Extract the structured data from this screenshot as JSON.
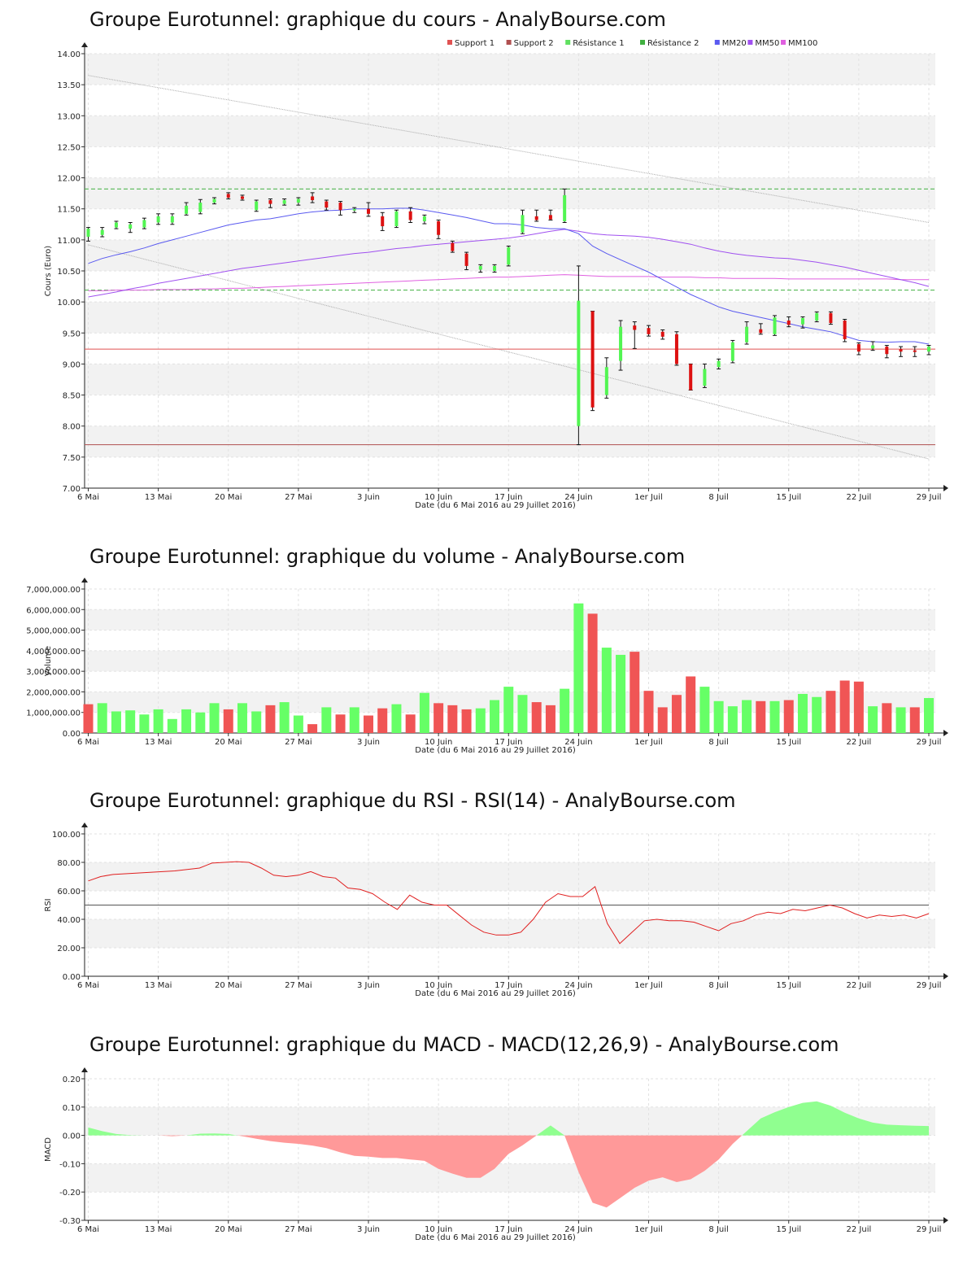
{
  "charts": [
    {
      "id": "price",
      "title": "Groupe Eurotunnel: graphique du cours - AnalyBourse.com",
      "ylabel": "Cours (Euro)",
      "xlabel": "Date (du 6 Mai 2016 au 29 Juillet 2016)"
    },
    {
      "id": "volume",
      "title": "Groupe Eurotunnel: graphique du volume - AnalyBourse.com",
      "ylabel": "Volume",
      "xlabel": "Date (du 6 Mai 2016 au 29 Juillet 2016)"
    },
    {
      "id": "rsi",
      "title": "Groupe Eurotunnel: graphique du RSI - RSI(14) - AnalyBourse.com",
      "ylabel": "RSI",
      "xlabel": "Date (du 6 Mai 2016 au 29 Juillet 2016)"
    },
    {
      "id": "macd",
      "title": "Groupe Eurotunnel: graphique du MACD - MACD(12,26,9) - AnalyBourse.com",
      "ylabel": "MACD",
      "xlabel": "Date (du 6 Mai 2016 au 29 Juillet 2016)"
    }
  ],
  "x_tick_labels": [
    "6 Mai",
    "13 Mai",
    "20 Mai",
    "27 Mai",
    "3 Juin",
    "10 Juin",
    "17 Juin",
    "24 Juin",
    "1er Juil",
    "8 Juil",
    "15 Juil",
    "22 Juil",
    "29 Juil"
  ],
  "legend": [
    {
      "label": "Support 1",
      "color": "#e05252"
    },
    {
      "label": "Support 2",
      "color": "#b05050"
    },
    {
      "label": "Résistance 1",
      "color": "#60e060"
    },
    {
      "label": "Résistance 2",
      "color": "#40b040"
    },
    {
      "label": "MM20",
      "color": "#5a5af0"
    },
    {
      "label": "MM50",
      "color": "#a050f0"
    },
    {
      "label": "MM100",
      "color": "#e060e0"
    }
  ],
  "colors": {
    "up": "#52f552",
    "down": "#dd1111",
    "vol_up": "#66ff66",
    "vol_down": "#f05555",
    "rsi": "#e02020",
    "macd_pos": "#90ff90",
    "macd_neg": "#ff9999"
  },
  "chart_data": [
    {
      "type": "candlestick",
      "title": "Groupe Eurotunnel: graphique du cours - AnalyBourse.com",
      "ylabel": "Cours (Euro)",
      "ylim": [
        7.0,
        14.0
      ],
      "yticks": [
        "7.00",
        "7.50",
        "8.00",
        "8.50",
        "9.00",
        "9.50",
        "10.00",
        "10.50",
        "11.00",
        "11.50",
        "12.00",
        "12.50",
        "13.00",
        "13.50",
        "14.00"
      ],
      "candles": [
        {
          "o": 11.05,
          "h": 11.2,
          "l": 10.98,
          "c": 11.18
        },
        {
          "o": 11.08,
          "h": 11.2,
          "l": 11.05,
          "c": 11.16
        },
        {
          "o": 11.2,
          "h": 11.3,
          "l": 11.18,
          "c": 11.28
        },
        {
          "o": 11.18,
          "h": 11.28,
          "l": 11.12,
          "c": 11.25
        },
        {
          "o": 11.2,
          "h": 11.35,
          "l": 11.18,
          "c": 11.32
        },
        {
          "o": 11.28,
          "h": 11.42,
          "l": 11.25,
          "c": 11.38
        },
        {
          "o": 11.28,
          "h": 11.42,
          "l": 11.25,
          "c": 11.38
        },
        {
          "o": 11.42,
          "h": 11.6,
          "l": 11.4,
          "c": 11.55
        },
        {
          "o": 11.45,
          "h": 11.65,
          "l": 11.42,
          "c": 11.6
        },
        {
          "o": 11.6,
          "h": 11.68,
          "l": 11.58,
          "c": 11.66
        },
        {
          "o": 11.74,
          "h": 11.76,
          "l": 11.66,
          "c": 11.68
        },
        {
          "o": 11.7,
          "h": 11.72,
          "l": 11.64,
          "c": 11.66
        },
        {
          "o": 11.48,
          "h": 11.64,
          "l": 11.46,
          "c": 11.62
        },
        {
          "o": 11.64,
          "h": 11.66,
          "l": 11.52,
          "c": 11.58
        },
        {
          "o": 11.58,
          "h": 11.66,
          "l": 11.56,
          "c": 11.64
        },
        {
          "o": 11.6,
          "h": 11.68,
          "l": 11.56,
          "c": 11.66
        },
        {
          "o": 11.7,
          "h": 11.76,
          "l": 11.6,
          "c": 11.64
        },
        {
          "o": 11.62,
          "h": 11.64,
          "l": 11.48,
          "c": 11.52
        },
        {
          "o": 11.6,
          "h": 11.62,
          "l": 11.4,
          "c": 11.48
        },
        {
          "o": 11.48,
          "h": 11.52,
          "l": 11.44,
          "c": 11.5
        },
        {
          "o": 11.5,
          "h": 11.6,
          "l": 11.38,
          "c": 11.42
        },
        {
          "o": 11.38,
          "h": 11.44,
          "l": 11.15,
          "c": 11.22
        },
        {
          "o": 11.22,
          "h": 11.48,
          "l": 11.2,
          "c": 11.46
        },
        {
          "o": 11.46,
          "h": 11.52,
          "l": 11.28,
          "c": 11.32
        },
        {
          "o": 11.3,
          "h": 11.4,
          "l": 11.26,
          "c": 11.38
        },
        {
          "o": 11.3,
          "h": 11.32,
          "l": 11.02,
          "c": 11.08
        },
        {
          "o": 10.95,
          "h": 10.98,
          "l": 10.8,
          "c": 10.82
        },
        {
          "o": 10.78,
          "h": 10.8,
          "l": 10.52,
          "c": 10.58
        },
        {
          "o": 10.52,
          "h": 10.6,
          "l": 10.48,
          "c": 10.58
        },
        {
          "o": 10.5,
          "h": 10.6,
          "l": 10.48,
          "c": 10.58
        },
        {
          "o": 10.6,
          "h": 10.9,
          "l": 10.58,
          "c": 10.88
        },
        {
          "o": 11.12,
          "h": 11.48,
          "l": 11.1,
          "c": 11.4
        },
        {
          "o": 11.38,
          "h": 11.48,
          "l": 11.3,
          "c": 11.32
        },
        {
          "o": 11.4,
          "h": 11.48,
          "l": 11.32,
          "c": 11.33
        },
        {
          "o": 11.3,
          "h": 11.82,
          "l": 11.28,
          "c": 11.72
        },
        {
          "o": 8.0,
          "h": 10.58,
          "l": 7.7,
          "c": 10.02
        },
        {
          "o": 9.85,
          "h": 9.85,
          "l": 8.25,
          "c": 8.3
        },
        {
          "o": 8.5,
          "h": 9.1,
          "l": 8.45,
          "c": 8.95
        },
        {
          "o": 9.05,
          "h": 9.7,
          "l": 8.9,
          "c": 9.6
        },
        {
          "o": 9.62,
          "h": 9.68,
          "l": 9.25,
          "c": 9.55
        },
        {
          "o": 9.58,
          "h": 9.62,
          "l": 9.45,
          "c": 9.48
        },
        {
          "o": 9.52,
          "h": 9.55,
          "l": 9.4,
          "c": 9.44
        },
        {
          "o": 9.48,
          "h": 9.52,
          "l": 8.98,
          "c": 9.0
        },
        {
          "o": 9.0,
          "h": 9.0,
          "l": 8.58,
          "c": 8.58
        },
        {
          "o": 8.65,
          "h": 9.0,
          "l": 8.62,
          "c": 8.92
        },
        {
          "o": 8.95,
          "h": 9.08,
          "l": 8.92,
          "c": 9.05
        },
        {
          "o": 9.05,
          "h": 9.38,
          "l": 9.02,
          "c": 9.35
        },
        {
          "o": 9.35,
          "h": 9.68,
          "l": 9.32,
          "c": 9.6
        },
        {
          "o": 9.56,
          "h": 9.65,
          "l": 9.48,
          "c": 9.5
        },
        {
          "o": 9.48,
          "h": 9.78,
          "l": 9.46,
          "c": 9.75
        },
        {
          "o": 9.7,
          "h": 9.76,
          "l": 9.6,
          "c": 9.63
        },
        {
          "o": 9.64,
          "h": 9.76,
          "l": 9.58,
          "c": 9.74
        },
        {
          "o": 9.7,
          "h": 9.84,
          "l": 9.68,
          "c": 9.82
        },
        {
          "o": 9.82,
          "h": 9.84,
          "l": 9.64,
          "c": 9.66
        },
        {
          "o": 9.7,
          "h": 9.72,
          "l": 9.36,
          "c": 9.4
        },
        {
          "o": 9.32,
          "h": 9.34,
          "l": 9.15,
          "c": 9.2
        },
        {
          "o": 9.25,
          "h": 9.36,
          "l": 9.22,
          "c": 9.3
        },
        {
          "o": 9.28,
          "h": 9.3,
          "l": 9.1,
          "c": 9.16
        },
        {
          "o": 9.24,
          "h": 9.28,
          "l": 9.12,
          "c": 9.2
        },
        {
          "o": 9.22,
          "h": 9.28,
          "l": 9.12,
          "c": 9.2
        },
        {
          "o": 9.2,
          "h": 9.3,
          "l": 9.15,
          "c": 9.28
        }
      ],
      "support_1": 9.24,
      "support_2": 7.7,
      "resistance_1": 11.82,
      "resistance_2": 10.19,
      "mm20": [
        10.62,
        10.7,
        10.76,
        10.81,
        10.87,
        10.94,
        11.0,
        11.06,
        11.12,
        11.18,
        11.24,
        11.28,
        11.32,
        11.34,
        11.38,
        11.42,
        11.45,
        11.47,
        11.48,
        11.5,
        11.5,
        11.5,
        11.51,
        11.51,
        11.48,
        11.44,
        11.4,
        11.36,
        11.31,
        11.26,
        11.26,
        11.24,
        11.2,
        11.18,
        11.18,
        11.1,
        10.9,
        10.78,
        10.68,
        10.58,
        10.48,
        10.36,
        10.24,
        10.12,
        10.02,
        9.92,
        9.85,
        9.8,
        9.75,
        9.7,
        9.65,
        9.6,
        9.56,
        9.52,
        9.45,
        9.38,
        9.36,
        9.35,
        9.36,
        9.36,
        9.32
      ],
      "mm50": [
        10.08,
        10.12,
        10.16,
        10.21,
        10.25,
        10.3,
        10.34,
        10.38,
        10.42,
        10.46,
        10.5,
        10.54,
        10.57,
        10.6,
        10.63,
        10.66,
        10.69,
        10.72,
        10.75,
        10.78,
        10.8,
        10.83,
        10.86,
        10.88,
        10.91,
        10.93,
        10.95,
        10.97,
        10.99,
        11.01,
        11.03,
        11.06,
        11.1,
        11.14,
        11.17,
        11.14,
        11.1,
        11.08,
        11.07,
        11.06,
        11.04,
        11.01,
        10.97,
        10.93,
        10.87,
        10.82,
        10.78,
        10.75,
        10.73,
        10.71,
        10.7,
        10.67,
        10.64,
        10.6,
        10.56,
        10.51,
        10.46,
        10.41,
        10.36,
        10.31,
        10.25
      ],
      "mm100": [
        10.18,
        10.18,
        10.19,
        10.19,
        10.19,
        10.2,
        10.2,
        10.2,
        10.21,
        10.21,
        10.22,
        10.22,
        10.23,
        10.24,
        10.25,
        10.26,
        10.27,
        10.28,
        10.29,
        10.3,
        10.31,
        10.32,
        10.33,
        10.34,
        10.35,
        10.36,
        10.37,
        10.38,
        10.39,
        10.4,
        10.4,
        10.41,
        10.42,
        10.43,
        10.44,
        10.43,
        10.42,
        10.41,
        10.41,
        10.41,
        10.41,
        10.4,
        10.4,
        10.4,
        10.39,
        10.39,
        10.38,
        10.38,
        10.38,
        10.38,
        10.37,
        10.37,
        10.37,
        10.37,
        10.37,
        10.37,
        10.37,
        10.37,
        10.36,
        10.36,
        10.36
      ],
      "channel_upper": [
        13.65,
        11.28
      ],
      "channel_lower": [
        10.92,
        7.47
      ]
    },
    {
      "type": "bar",
      "title": "Groupe Eurotunnel: graphique du volume - AnalyBourse.com",
      "ylabel": "Volume",
      "ylim": [
        0,
        7000000
      ],
      "yticks": [
        "0.00",
        "1,000,000.00",
        "2,000,000.00",
        "3,000,000.00",
        "4,000,000.00",
        "5,000,000.00",
        "6,000,000.00",
        "7,000,000.00"
      ],
      "values": [
        1400000,
        1450000,
        1050000,
        1100000,
        900000,
        1150000,
        680000,
        1150000,
        1000000,
        1450000,
        1150000,
        1450000,
        1050000,
        1350000,
        1500000,
        850000,
        430000,
        1250000,
        900000,
        1250000,
        850000,
        1200000,
        1400000,
        900000,
        1950000,
        1450000,
        1350000,
        1150000,
        1200000,
        1600000,
        2250000,
        1850000,
        1500000,
        1350000,
        2150000,
        6300000,
        5800000,
        4150000,
        3800000,
        3950000,
        2050000,
        1250000,
        1850000,
        2750000,
        2250000,
        1550000,
        1300000,
        1600000,
        1550000,
        1550000,
        1600000,
        1900000,
        1750000,
        2050000,
        2550000,
        2500000,
        1300000,
        1450000,
        1250000,
        1250000,
        1700000
      ],
      "direction": [
        "d",
        "u",
        "u",
        "u",
        "u",
        "u",
        "u",
        "u",
        "u",
        "u",
        "d",
        "u",
        "u",
        "d",
        "u",
        "u",
        "d",
        "u",
        "d",
        "u",
        "d",
        "d",
        "u",
        "d",
        "u",
        "d",
        "d",
        "d",
        "u",
        "u",
        "u",
        "u",
        "d",
        "d",
        "u",
        "u",
        "d",
        "u",
        "u",
        "d",
        "d",
        "d",
        "d",
        "d",
        "u",
        "u",
        "u",
        "u",
        "d",
        "u",
        "d",
        "u",
        "u",
        "d",
        "d",
        "d",
        "u",
        "d",
        "u",
        "d",
        "u"
      ]
    },
    {
      "type": "line",
      "title": "Groupe Eurotunnel: graphique du RSI - RSI(14) - AnalyBourse.com",
      "ylabel": "RSI",
      "ylim": [
        0,
        100
      ],
      "yticks": [
        "0.00",
        "20.00",
        "40.00",
        "60.00",
        "80.00",
        "100.00"
      ],
      "reference_line": 50,
      "values": [
        67,
        70,
        71.5,
        72,
        72.5,
        73,
        73.5,
        74,
        75,
        76,
        79.5,
        80,
        80.5,
        80,
        76,
        71,
        70,
        71,
        73.5,
        70,
        69,
        62,
        61,
        58,
        52,
        47,
        57,
        52,
        50,
        50,
        43,
        36,
        31,
        29,
        29,
        31,
        40,
        52,
        58,
        56,
        56,
        63,
        37,
        23,
        31,
        39,
        40,
        39,
        39,
        38,
        35,
        32,
        37,
        39,
        43,
        45,
        44,
        47,
        46,
        48,
        50,
        48,
        44,
        41,
        43,
        42,
        43,
        41,
        44
      ]
    },
    {
      "type": "area",
      "title": "Groupe Eurotunnel: graphique du MACD - MACD(12,26,9) - AnalyBourse.com",
      "ylabel": "MACD",
      "ylim": [
        -0.3,
        0.2
      ],
      "yticks": [
        "-0.30",
        "-0.20",
        "-0.10",
        "0.00",
        "0.10",
        "0.20"
      ],
      "values": [
        0.028,
        0.015,
        0.005,
        0.001,
        0.0,
        0.0,
        -0.003,
        0.0,
        0.006,
        0.007,
        0.005,
        -0.003,
        -0.012,
        -0.02,
        -0.026,
        -0.03,
        -0.036,
        -0.045,
        -0.06,
        -0.072,
        -0.075,
        -0.08,
        -0.08,
        -0.085,
        -0.09,
        -0.118,
        -0.135,
        -0.15,
        -0.15,
        -0.118,
        -0.065,
        -0.035,
        0.0,
        0.035,
        0.0,
        -0.13,
        -0.238,
        -0.255,
        -0.22,
        -0.185,
        -0.16,
        -0.148,
        -0.165,
        -0.155,
        -0.125,
        -0.085,
        -0.03,
        0.015,
        0.06,
        0.082,
        0.1,
        0.115,
        0.12,
        0.105,
        0.08,
        0.06,
        0.045,
        0.038,
        0.036,
        0.034,
        0.033
      ]
    }
  ]
}
